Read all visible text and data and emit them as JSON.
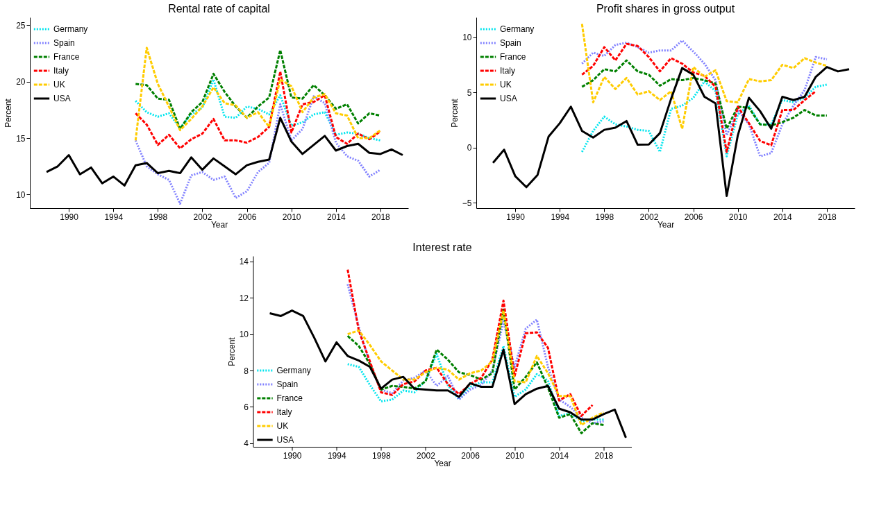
{
  "chart_data": [
    {
      "type": "line",
      "title": "Rental rate of capital",
      "xlabel": "Year",
      "ylabel": "Percent",
      "legend": "top left",
      "grid": false,
      "x": [
        1988,
        1989,
        1990,
        1991,
        1992,
        1993,
        1994,
        1995,
        1996,
        1997,
        1998,
        1999,
        2000,
        2001,
        2002,
        2003,
        2004,
        2005,
        2006,
        2007,
        2008,
        2009,
        2010,
        2011,
        2012,
        2013,
        2014,
        2015,
        2016,
        2017,
        2018,
        2019,
        2020
      ],
      "xlim": [
        1986.5,
        2020.5
      ],
      "xticks": [
        1990,
        1994,
        1998,
        2002,
        2006,
        2010,
        2014,
        2018
      ],
      "ylim": [
        8.8,
        25.7
      ],
      "yticks": [
        10,
        15,
        20,
        25
      ],
      "series": [
        {
          "name": "Germany",
          "color": "#00e5ee",
          "line_style": "dotted",
          "values": [
            null,
            null,
            null,
            null,
            null,
            null,
            null,
            null,
            18.3,
            17.3,
            16.9,
            17.2,
            15.9,
            17.1,
            17.7,
            20.2,
            16.9,
            16.8,
            17.8,
            17.6,
            17.1,
            18.8,
            16.1,
            16.4,
            17.1,
            17.3,
            15.3,
            15.5,
            15.4,
            15.0,
            14.8,
            null,
            null
          ]
        },
        {
          "name": "Spain",
          "color": "#8080ff",
          "line_style": "dotted",
          "values": [
            null,
            null,
            null,
            null,
            null,
            null,
            null,
            null,
            14.8,
            12.5,
            11.8,
            11.3,
            9.2,
            11.7,
            12.0,
            11.3,
            11.6,
            9.7,
            10.3,
            12.0,
            12.8,
            18.0,
            14.8,
            15.8,
            18.7,
            18.1,
            14.6,
            13.4,
            13.0,
            11.6,
            12.2,
            null,
            null
          ]
        },
        {
          "name": "France",
          "color": "#008000",
          "line_style": "dashed",
          "values": [
            null,
            null,
            null,
            null,
            null,
            null,
            null,
            null,
            19.8,
            19.7,
            18.5,
            18.4,
            15.8,
            17.3,
            18.2,
            20.7,
            19.1,
            17.8,
            16.8,
            17.8,
            18.6,
            22.8,
            18.6,
            18.5,
            19.7,
            18.8,
            17.6,
            18.0,
            16.3,
            17.2,
            17.0,
            null,
            null
          ]
        },
        {
          "name": "Italy",
          "color": "#ff0000",
          "line_style": "dashed",
          "values": [
            null,
            null,
            null,
            null,
            null,
            null,
            null,
            null,
            17.2,
            16.2,
            14.4,
            15.3,
            14.1,
            14.9,
            15.4,
            16.7,
            14.8,
            14.8,
            14.6,
            15.1,
            16.0,
            20.9,
            15.5,
            18.0,
            18.2,
            18.8,
            15.1,
            14.5,
            15.4,
            14.9,
            15.6,
            null,
            null
          ]
        },
        {
          "name": "UK",
          "color": "#ffcc00",
          "line_style": "dashed",
          "values": [
            null,
            null,
            null,
            null,
            null,
            null,
            null,
            null,
            14.8,
            23.0,
            19.8,
            17.8,
            15.7,
            16.7,
            17.8,
            19.5,
            18.1,
            17.9,
            16.8,
            17.3,
            16.0,
            20.2,
            19.6,
            17.3,
            18.6,
            18.9,
            17.2,
            17.0,
            15.0,
            15.0,
            15.7,
            null,
            null
          ]
        },
        {
          "name": "USA",
          "color": "#000000",
          "line_style": "solid",
          "values": [
            12.0,
            12.5,
            13.5,
            11.8,
            12.4,
            11.0,
            11.6,
            10.8,
            12.6,
            12.8,
            11.9,
            12.1,
            11.9,
            13.3,
            12.2,
            13.2,
            12.5,
            11.8,
            12.6,
            12.9,
            13.1,
            16.8,
            14.7,
            13.6,
            14.4,
            15.2,
            13.9,
            14.3,
            14.5,
            13.7,
            13.6,
            14.0,
            13.5
          ]
        }
      ]
    },
    {
      "type": "line",
      "title": "Profit shares in gross output",
      "xlabel": "Year",
      "ylabel": "Percent",
      "legend": "top left",
      "grid": false,
      "x": [
        1988,
        1989,
        1990,
        1991,
        1992,
        1993,
        1994,
        1995,
        1996,
        1997,
        1998,
        1999,
        2000,
        2001,
        2002,
        2003,
        2004,
        2005,
        2006,
        2007,
        2008,
        2009,
        2010,
        2011,
        2012,
        2013,
        2014,
        2015,
        2016,
        2017,
        2018,
        2019,
        2020
      ],
      "xlim": [
        1986.5,
        2020.5
      ],
      "xticks": [
        1990,
        1994,
        1998,
        2002,
        2006,
        2010,
        2014,
        2018
      ],
      "ylim": [
        -5.5,
        11.8
      ],
      "yticks": [
        -5,
        0,
        5,
        10
      ],
      "series": [
        {
          "name": "Germany",
          "color": "#00e5ee",
          "line_style": "dotted",
          "values": [
            null,
            null,
            null,
            null,
            null,
            null,
            null,
            null,
            -0.4,
            1.5,
            2.8,
            2.1,
            1.9,
            1.6,
            1.5,
            -0.4,
            3.5,
            3.8,
            4.5,
            6.0,
            5.1,
            -0.8,
            3.0,
            3.8,
            2.1,
            2.1,
            4.3,
            4.1,
            4.5,
            5.5,
            5.7,
            null,
            null
          ]
        },
        {
          "name": "Spain",
          "color": "#8080ff",
          "line_style": "dotted",
          "values": [
            null,
            null,
            null,
            null,
            null,
            null,
            null,
            null,
            7.6,
            8.6,
            8.3,
            9.3,
            9.5,
            9.1,
            8.6,
            8.8,
            8.8,
            9.7,
            8.7,
            7.6,
            6.1,
            1.1,
            3.4,
            2.1,
            -0.8,
            -0.5,
            2.1,
            3.8,
            5.2,
            8.2,
            8.0,
            null,
            null
          ]
        },
        {
          "name": "France",
          "color": "#008000",
          "line_style": "dashed",
          "values": [
            null,
            null,
            null,
            null,
            null,
            null,
            null,
            null,
            5.5,
            6.1,
            7.1,
            6.9,
            7.9,
            6.9,
            6.6,
            5.6,
            6.2,
            6.1,
            6.3,
            6.1,
            5.8,
            1.7,
            3.7,
            3.6,
            2.1,
            2.0,
            2.3,
            2.7,
            3.4,
            2.9,
            2.9,
            null,
            null
          ]
        },
        {
          "name": "Italy",
          "color": "#ff0000",
          "line_style": "dashed",
          "values": [
            null,
            null,
            null,
            null,
            null,
            null,
            null,
            null,
            6.6,
            7.4,
            9.1,
            7.9,
            9.4,
            9.2,
            8.2,
            6.9,
            8.1,
            7.6,
            6.8,
            6.5,
            5.5,
            -0.4,
            3.7,
            2.2,
            0.6,
            0.2,
            3.4,
            3.4,
            4.3,
            5.1,
            null,
            null,
            null
          ]
        },
        {
          "name": "UK",
          "color": "#ffcc00",
          "line_style": "dashed",
          "values": [
            null,
            null,
            null,
            null,
            null,
            null,
            null,
            null,
            11.2,
            4.1,
            6.4,
            5.3,
            6.3,
            4.8,
            5.1,
            4.3,
            5.1,
            1.7,
            7.3,
            6.4,
            7.0,
            4.2,
            4.1,
            6.2,
            6.0,
            6.1,
            7.5,
            7.2,
            8.1,
            7.7,
            7.4,
            null,
            null
          ]
        },
        {
          "name": "USA",
          "color": "#000000",
          "line_style": "solid",
          "values": [
            -1.4,
            -0.2,
            -2.6,
            -3.6,
            -2.5,
            1.0,
            2.2,
            3.7,
            1.5,
            0.9,
            1.6,
            1.8,
            2.4,
            0.25,
            0.27,
            1.3,
            4.4,
            7.2,
            6.6,
            4.6,
            4.0,
            -4.4,
            1.1,
            4.5,
            3.3,
            1.7,
            4.6,
            4.3,
            4.6,
            6.4,
            7.3,
            6.9,
            7.1
          ]
        }
      ]
    },
    {
      "type": "line",
      "title": "Interest rate",
      "xlabel": "Year",
      "ylabel": "Percent",
      "legend": "bottom left",
      "grid": false,
      "x": [
        1988,
        1989,
        1990,
        1991,
        1992,
        1993,
        1994,
        1995,
        1996,
        1997,
        1998,
        1999,
        2000,
        2001,
        2002,
        2003,
        2004,
        2005,
        2006,
        2007,
        2008,
        2009,
        2010,
        2011,
        2012,
        2013,
        2014,
        2015,
        2016,
        2017,
        2018,
        2019,
        2020
      ],
      "xlim": [
        1986.5,
        2020.5
      ],
      "xticks": [
        1990,
        1994,
        1998,
        2002,
        2006,
        2010,
        2014,
        2018
      ],
      "ylim": [
        3.8,
        14.3
      ],
      "yticks": [
        4,
        6,
        8,
        10,
        12,
        14
      ],
      "series": [
        {
          "name": "Germany",
          "color": "#00e5ee",
          "line_style": "dotted",
          "values": [
            null,
            null,
            null,
            null,
            null,
            null,
            null,
            8.35,
            8.2,
            7.2,
            6.3,
            6.4,
            6.9,
            6.8,
            7.45,
            8.9,
            7.2,
            6.4,
            7.1,
            7.35,
            7.35,
            9.35,
            6.55,
            6.95,
            7.8,
            7.45,
            5.5,
            5.65,
            5.2,
            5.3,
            5.3,
            null,
            null
          ]
        },
        {
          "name": "Spain",
          "color": "#8080ff",
          "line_style": "dotted",
          "values": [
            null,
            null,
            null,
            null,
            null,
            null,
            null,
            12.75,
            10.4,
            8.35,
            6.95,
            6.75,
            7.45,
            7.6,
            8.0,
            7.15,
            7.7,
            6.4,
            6.95,
            7.2,
            8.0,
            10.7,
            8.2,
            10.3,
            10.8,
            8.2,
            6.4,
            6.0,
            5.4,
            5.1,
            5.2,
            null,
            null
          ]
        },
        {
          "name": "France",
          "color": "#008000",
          "line_style": "dashed",
          "values": [
            null,
            null,
            null,
            null,
            null,
            null,
            null,
            9.9,
            9.35,
            8.35,
            6.95,
            7.15,
            7.1,
            7.0,
            7.4,
            9.15,
            8.6,
            7.9,
            7.75,
            7.5,
            7.85,
            11.35,
            6.95,
            7.65,
            8.45,
            7.05,
            5.4,
            5.6,
            4.55,
            5.1,
            5.0,
            null,
            null
          ]
        },
        {
          "name": "Italy",
          "color": "#ff0000",
          "line_style": "dashed",
          "values": [
            null,
            null,
            null,
            null,
            null,
            null,
            null,
            13.55,
            10.2,
            8.5,
            6.8,
            6.65,
            7.25,
            7.4,
            8.0,
            8.15,
            7.25,
            6.7,
            7.25,
            7.6,
            8.6,
            11.85,
            7.7,
            10.05,
            10.1,
            9.25,
            6.35,
            6.7,
            5.5,
            6.1,
            null,
            null,
            null
          ]
        },
        {
          "name": "UK",
          "color": "#ffcc00",
          "line_style": "dashed",
          "values": [
            null,
            null,
            null,
            null,
            null,
            null,
            null,
            10.0,
            10.2,
            9.4,
            8.5,
            8.0,
            7.5,
            7.5,
            7.9,
            8.15,
            8.05,
            7.5,
            7.85,
            8.0,
            8.5,
            11.3,
            7.4,
            7.35,
            8.8,
            7.85,
            6.6,
            6.6,
            5.0,
            5.4,
            5.7,
            null,
            null
          ]
        },
        {
          "name": "USA",
          "color": "#000000",
          "line_style": "solid",
          "values": [
            11.15,
            11.0,
            11.3,
            11.0,
            9.8,
            8.5,
            9.55,
            8.8,
            8.55,
            8.2,
            7.0,
            7.5,
            7.65,
            7.0,
            6.95,
            6.9,
            6.9,
            6.55,
            7.3,
            7.1,
            7.1,
            9.15,
            6.15,
            6.7,
            7.0,
            7.15,
            5.9,
            5.7,
            5.3,
            5.3,
            5.6,
            5.85,
            4.3
          ]
        }
      ]
    }
  ]
}
